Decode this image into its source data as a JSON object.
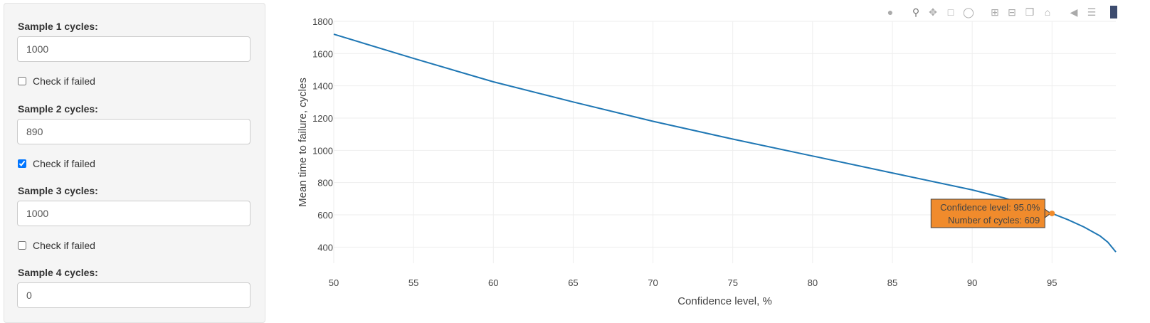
{
  "sidebar": {
    "samples": [
      {
        "label": "Sample 1 cycles:",
        "value": "1000",
        "check_label": "Check if failed",
        "checked": false
      },
      {
        "label": "Sample 2 cycles:",
        "value": "890",
        "check_label": "Check if failed",
        "checked": true
      },
      {
        "label": "Sample 3 cycles:",
        "value": "1000",
        "check_label": "Check if failed",
        "checked": false
      },
      {
        "label": "Sample 4 cycles:",
        "value": "0"
      }
    ]
  },
  "modebar": {
    "icons": [
      "camera-icon",
      "zoom-icon",
      "pan-icon",
      "box-select-icon",
      "lasso-select-icon",
      "zoom-in-icon",
      "zoom-out-icon",
      "autoscale-icon",
      "reset-axes-icon",
      "spike-lines-icon",
      "compare-data-icon"
    ]
  },
  "chart_data": {
    "type": "line",
    "title": "",
    "xlabel": "Confidence level, %",
    "ylabel": "Mean time to failure, cycles",
    "xlim": [
      50,
      99
    ],
    "ylim": [
      300,
      1800
    ],
    "x_ticks": [
      50,
      55,
      60,
      65,
      70,
      75,
      80,
      85,
      90,
      95
    ],
    "y_ticks": [
      400,
      600,
      800,
      1000,
      1200,
      1400,
      1600,
      1800
    ],
    "grid": true,
    "line_color": "#1f77b4",
    "series": [
      {
        "x": [
          50,
          55,
          60,
          65,
          70,
          75,
          80,
          85,
          90,
          92,
          94,
          95,
          96,
          97,
          98,
          98.5,
          99
        ],
        "y": [
          1720,
          1570,
          1425,
          1300,
          1180,
          1070,
          965,
          860,
          755,
          705,
          645,
          609,
          570,
          525,
          470,
          430,
          370
        ]
      }
    ],
    "hover": {
      "x": 95,
      "y": 609,
      "line1": "Confidence level: 95.0%",
      "line2": "Number of cycles: 609",
      "bg_color": "#f08b2c"
    }
  }
}
